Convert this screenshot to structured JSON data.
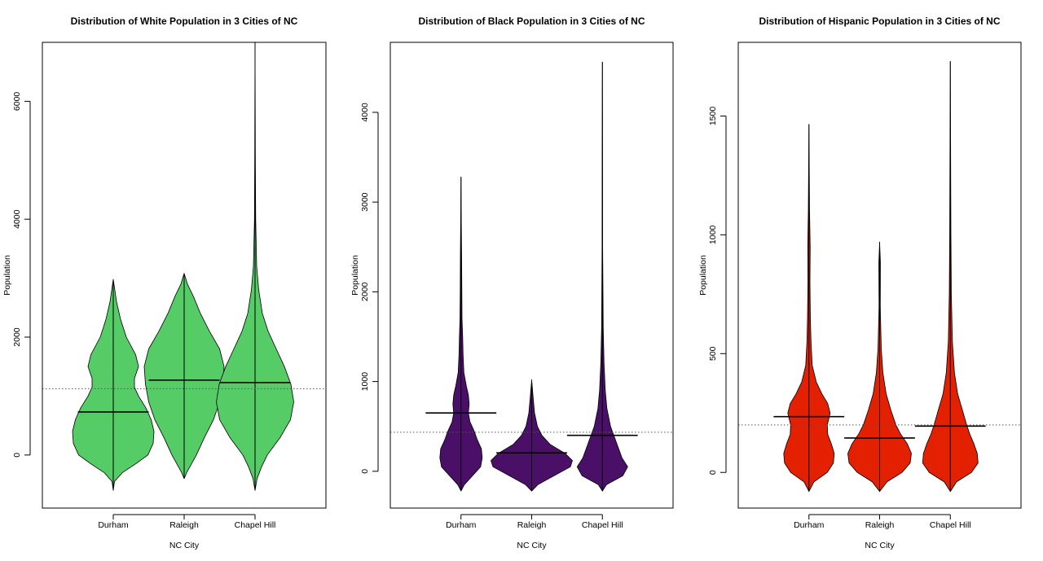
{
  "chart_data": [
    {
      "type": "violin",
      "title": "Distribution of White Population in 3 Cities of NC",
      "xlabel": "NC City",
      "ylabel": "Population",
      "categories": [
        "Durham",
        "Raleigh",
        "Chapel Hill"
      ],
      "ylim": [
        -900,
        7000
      ],
      "yticks": [
        0,
        2000,
        4000,
        6000
      ],
      "fill": "#55cc66",
      "overall_mean": 1125,
      "means": [
        730,
        1270,
        1230
      ],
      "ranges": [
        [
          -600,
          2980
        ],
        [
          -400,
          3080
        ],
        [
          -600,
          7000
        ]
      ],
      "density": [
        [
          [
            -600,
            0.0
          ],
          [
            -450,
            0.03
          ],
          [
            -300,
            0.22
          ],
          [
            -150,
            0.55
          ],
          [
            0,
            0.85
          ],
          [
            200,
            0.98
          ],
          [
            400,
            1.0
          ],
          [
            600,
            0.93
          ],
          [
            800,
            0.8
          ],
          [
            1000,
            0.62
          ],
          [
            1150,
            0.52
          ],
          [
            1300,
            0.52
          ],
          [
            1500,
            0.62
          ],
          [
            1700,
            0.55
          ],
          [
            2000,
            0.32
          ],
          [
            2300,
            0.18
          ],
          [
            2600,
            0.08
          ],
          [
            2980,
            0.0
          ]
        ],
        [
          [
            -400,
            0.0
          ],
          [
            -300,
            0.06
          ],
          [
            -150,
            0.18
          ],
          [
            0,
            0.3
          ],
          [
            300,
            0.5
          ],
          [
            600,
            0.72
          ],
          [
            900,
            0.87
          ],
          [
            1200,
            0.95
          ],
          [
            1500,
            0.98
          ],
          [
            1800,
            0.87
          ],
          [
            2100,
            0.62
          ],
          [
            2400,
            0.4
          ],
          [
            2700,
            0.22
          ],
          [
            2900,
            0.08
          ],
          [
            3080,
            0.0
          ]
        ],
        [
          [
            -600,
            0.0
          ],
          [
            -400,
            0.05
          ],
          [
            -200,
            0.16
          ],
          [
            0,
            0.3
          ],
          [
            300,
            0.62
          ],
          [
            600,
            0.87
          ],
          [
            900,
            0.95
          ],
          [
            1200,
            0.88
          ],
          [
            1500,
            0.72
          ],
          [
            1800,
            0.52
          ],
          [
            2100,
            0.32
          ],
          [
            2400,
            0.18
          ],
          [
            2800,
            0.09
          ],
          [
            3200,
            0.04
          ],
          [
            4000,
            0.015
          ],
          [
            5000,
            0.008
          ],
          [
            6000,
            0.004
          ],
          [
            7000,
            0.0
          ]
        ]
      ]
    },
    {
      "type": "violin",
      "title": "Distribution of Black Population in 3 Cities of NC",
      "xlabel": "NC City",
      "ylabel": "Population",
      "categories": [
        "Durham",
        "Raleigh",
        "Chapel Hill"
      ],
      "ylim": [
        -410,
        4780
      ],
      "yticks": [
        0,
        1000,
        2000,
        3000,
        4000
      ],
      "fill": "#4a1068",
      "overall_mean": 435,
      "means": [
        650,
        205,
        400
      ],
      "ranges": [
        [
          -220,
          3280
        ],
        [
          -220,
          1020
        ],
        [
          -220,
          4560
        ]
      ],
      "density": [
        [
          [
            -220,
            0.0
          ],
          [
            -150,
            0.08
          ],
          [
            -50,
            0.28
          ],
          [
            50,
            0.48
          ],
          [
            150,
            0.52
          ],
          [
            250,
            0.5
          ],
          [
            350,
            0.4
          ],
          [
            450,
            0.32
          ],
          [
            550,
            0.22
          ],
          [
            650,
            0.18
          ],
          [
            750,
            0.2
          ],
          [
            850,
            0.18
          ],
          [
            950,
            0.13
          ],
          [
            1100,
            0.07
          ],
          [
            1300,
            0.05
          ],
          [
            1500,
            0.04
          ],
          [
            1700,
            0.025
          ],
          [
            2000,
            0.02
          ],
          [
            2400,
            0.015
          ],
          [
            2800,
            0.008
          ],
          [
            3280,
            0.0
          ]
        ],
        [
          [
            -220,
            0.0
          ],
          [
            -150,
            0.15
          ],
          [
            -50,
            0.55
          ],
          [
            50,
            0.95
          ],
          [
            120,
            1.0
          ],
          [
            200,
            0.82
          ],
          [
            300,
            0.45
          ],
          [
            400,
            0.25
          ],
          [
            500,
            0.14
          ],
          [
            650,
            0.07
          ],
          [
            800,
            0.04
          ],
          [
            1020,
            0.0
          ]
        ],
        [
          [
            -220,
            0.0
          ],
          [
            -150,
            0.1
          ],
          [
            -50,
            0.5
          ],
          [
            50,
            0.62
          ],
          [
            150,
            0.48
          ],
          [
            250,
            0.4
          ],
          [
            350,
            0.32
          ],
          [
            500,
            0.2
          ],
          [
            700,
            0.11
          ],
          [
            900,
            0.07
          ],
          [
            1200,
            0.04
          ],
          [
            1600,
            0.02
          ],
          [
            2500,
            0.008
          ],
          [
            3500,
            0.005
          ],
          [
            4560,
            0.0
          ]
        ]
      ]
    },
    {
      "type": "violin",
      "title": "Distribution of Hispanic Population in 3 Cities of NC",
      "xlabel": "NC City",
      "ylabel": "Population",
      "categories": [
        "Durham",
        "Raleigh",
        "Chapel Hill"
      ],
      "ylim": [
        -150,
        1810
      ],
      "yticks": [
        0,
        500,
        1000,
        1500
      ],
      "fill": "#e32000",
      "overall_mean": 200,
      "means": [
        235,
        145,
        195
      ],
      "ranges": [
        [
          -80,
          1465
        ],
        [
          -80,
          970
        ],
        [
          -80,
          1730
        ]
      ],
      "density": [
        [
          [
            -80,
            0.0
          ],
          [
            -40,
            0.12
          ],
          [
            0,
            0.45
          ],
          [
            40,
            0.6
          ],
          [
            80,
            0.62
          ],
          [
            120,
            0.55
          ],
          [
            160,
            0.46
          ],
          [
            200,
            0.45
          ],
          [
            250,
            0.52
          ],
          [
            290,
            0.46
          ],
          [
            330,
            0.32
          ],
          [
            380,
            0.18
          ],
          [
            450,
            0.08
          ],
          [
            550,
            0.05
          ],
          [
            650,
            0.035
          ],
          [
            800,
            0.025
          ],
          [
            950,
            0.03
          ],
          [
            1100,
            0.015
          ],
          [
            1300,
            0.008
          ],
          [
            1465,
            0.0
          ]
        ],
        [
          [
            -80,
            0.0
          ],
          [
            -40,
            0.18
          ],
          [
            0,
            0.55
          ],
          [
            40,
            0.75
          ],
          [
            80,
            0.78
          ],
          [
            120,
            0.68
          ],
          [
            160,
            0.52
          ],
          [
            200,
            0.4
          ],
          [
            260,
            0.28
          ],
          [
            330,
            0.16
          ],
          [
            420,
            0.08
          ],
          [
            520,
            0.04
          ],
          [
            700,
            0.015
          ],
          [
            880,
            0.02
          ],
          [
            970,
            0.0
          ]
        ],
        [
          [
            -80,
            0.0
          ],
          [
            -40,
            0.15
          ],
          [
            0,
            0.52
          ],
          [
            40,
            0.68
          ],
          [
            80,
            0.66
          ],
          [
            120,
            0.58
          ],
          [
            160,
            0.48
          ],
          [
            200,
            0.4
          ],
          [
            260,
            0.3
          ],
          [
            330,
            0.18
          ],
          [
            420,
            0.1
          ],
          [
            550,
            0.05
          ],
          [
            750,
            0.025
          ],
          [
            1000,
            0.015
          ],
          [
            1300,
            0.008
          ],
          [
            1730,
            0.0
          ]
        ]
      ]
    }
  ]
}
